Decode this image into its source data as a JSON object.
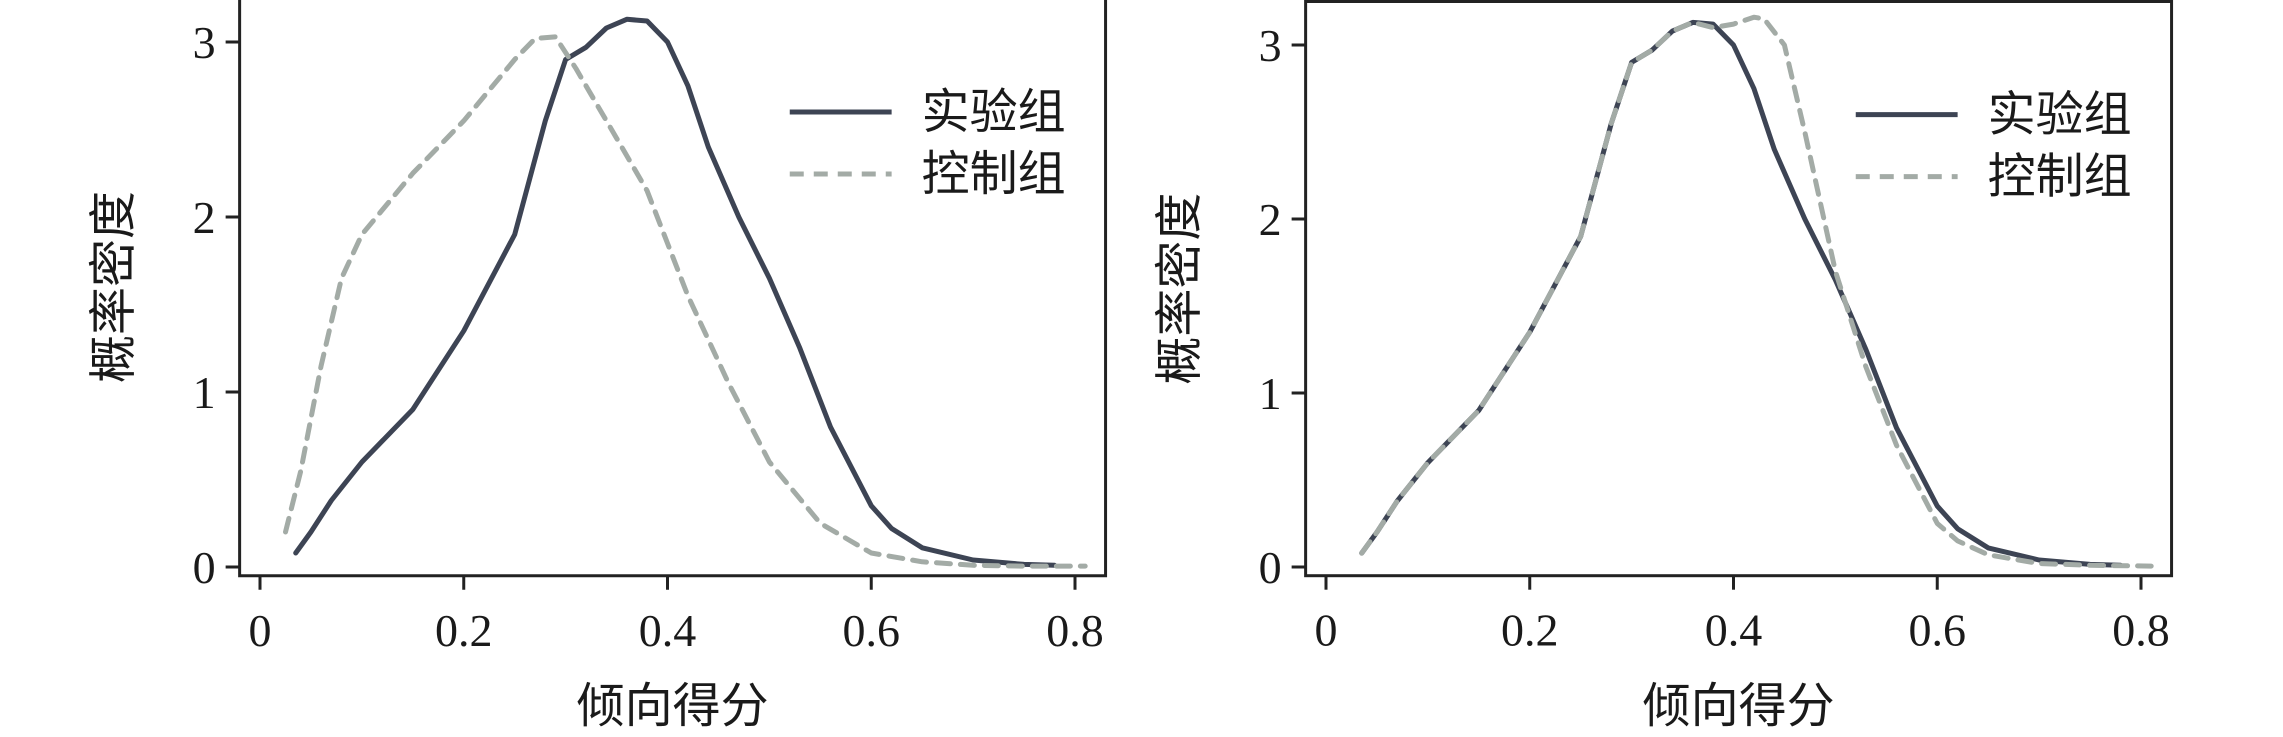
{
  "chart_data": [
    {
      "type": "line",
      "title": "",
      "xlabel": "倾向得分",
      "ylabel": "概率密度",
      "xlim": [
        0,
        0.83
      ],
      "ylim": [
        0,
        3.25
      ],
      "xticks": [
        "0",
        "0.2",
        "0.4",
        "0.6",
        "0.8"
      ],
      "yticks": [
        "0",
        "1",
        "2",
        "3"
      ],
      "grid": false,
      "legend_position": "top-right",
      "series": [
        {
          "name": "实验组",
          "style": "solid",
          "color": "#3d4454",
          "x": [
            0.035,
            0.05,
            0.07,
            0.1,
            0.15,
            0.2,
            0.25,
            0.28,
            0.3,
            0.32,
            0.34,
            0.36,
            0.38,
            0.4,
            0.42,
            0.44,
            0.47,
            0.5,
            0.53,
            0.56,
            0.6,
            0.62,
            0.65,
            0.7,
            0.75,
            0.78
          ],
          "y": [
            0.08,
            0.2,
            0.38,
            0.6,
            0.9,
            1.35,
            1.9,
            2.55,
            2.9,
            2.97,
            3.08,
            3.13,
            3.12,
            3.0,
            2.75,
            2.4,
            2.0,
            1.65,
            1.25,
            0.8,
            0.35,
            0.22,
            0.11,
            0.04,
            0.015,
            0.01
          ]
        },
        {
          "name": "控制组",
          "style": "dashed",
          "color": "#a3aba6",
          "x": [
            0.025,
            0.04,
            0.06,
            0.08,
            0.1,
            0.15,
            0.2,
            0.25,
            0.27,
            0.29,
            0.31,
            0.33,
            0.35,
            0.38,
            0.42,
            0.46,
            0.5,
            0.55,
            0.6,
            0.65,
            0.7,
            0.75,
            0.81
          ],
          "y": [
            0.2,
            0.55,
            1.15,
            1.65,
            1.9,
            2.25,
            2.55,
            2.9,
            3.02,
            3.03,
            2.85,
            2.65,
            2.45,
            2.15,
            1.55,
            1.05,
            0.6,
            0.25,
            0.08,
            0.03,
            0.01,
            0.005,
            0.005
          ]
        }
      ]
    },
    {
      "type": "line",
      "title": "",
      "xlabel": "倾向得分",
      "ylabel": "概率密度",
      "xlim": [
        0,
        0.83
      ],
      "ylim": [
        0,
        3.25
      ],
      "xticks": [
        "0",
        "0.2",
        "0.4",
        "0.6",
        "0.8"
      ],
      "yticks": [
        "0",
        "1",
        "2",
        "3"
      ],
      "grid": false,
      "legend_position": "top-right",
      "series": [
        {
          "name": "实验组",
          "style": "solid",
          "color": "#3d4454",
          "x": [
            0.035,
            0.05,
            0.07,
            0.1,
            0.15,
            0.2,
            0.25,
            0.28,
            0.3,
            0.32,
            0.34,
            0.36,
            0.38,
            0.4,
            0.42,
            0.44,
            0.47,
            0.5,
            0.53,
            0.56,
            0.6,
            0.62,
            0.65,
            0.7,
            0.75,
            0.78
          ],
          "y": [
            0.08,
            0.2,
            0.38,
            0.6,
            0.9,
            1.35,
            1.9,
            2.55,
            2.9,
            2.97,
            3.08,
            3.13,
            3.12,
            3.0,
            2.75,
            2.4,
            2.0,
            1.65,
            1.25,
            0.8,
            0.35,
            0.22,
            0.11,
            0.04,
            0.015,
            0.01
          ]
        },
        {
          "name": "控制组",
          "style": "dashed",
          "color": "#a3aba6",
          "x": [
            0.035,
            0.05,
            0.07,
            0.1,
            0.15,
            0.2,
            0.25,
            0.28,
            0.3,
            0.32,
            0.34,
            0.36,
            0.38,
            0.4,
            0.42,
            0.43,
            0.45,
            0.47,
            0.5,
            0.53,
            0.56,
            0.6,
            0.62,
            0.65,
            0.7,
            0.75,
            0.81
          ],
          "y": [
            0.08,
            0.2,
            0.38,
            0.6,
            0.9,
            1.35,
            1.9,
            2.55,
            2.9,
            2.97,
            3.08,
            3.13,
            3.1,
            3.12,
            3.16,
            3.15,
            3.0,
            2.5,
            1.7,
            1.15,
            0.7,
            0.25,
            0.15,
            0.07,
            0.02,
            0.01,
            0.005
          ]
        }
      ]
    }
  ]
}
